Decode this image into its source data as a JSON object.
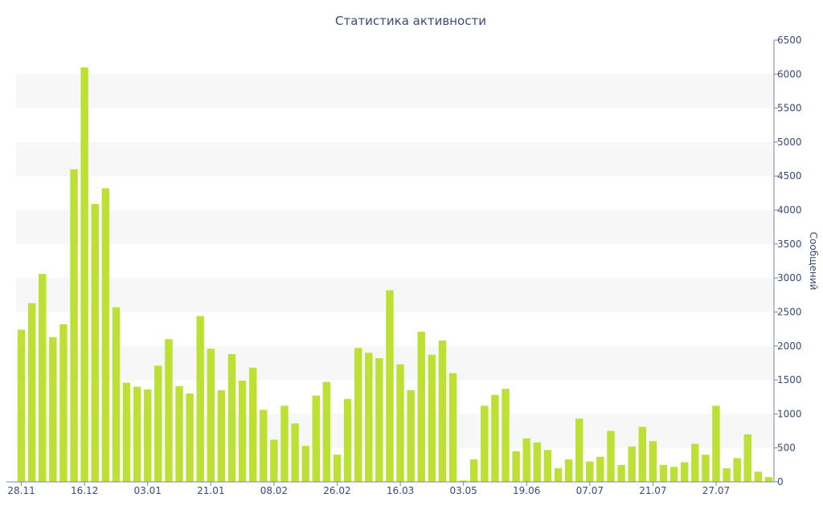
{
  "chart_data": {
    "type": "bar",
    "title": "Статистика активности",
    "xlabel": "",
    "ylabel": "Сообщений",
    "ylim": [
      0,
      6500
    ],
    "ytick_step": 500,
    "y_axis_side": "right",
    "alternate_bands": true,
    "x_tick_labels": [
      "28.11",
      "16.12",
      "03.01",
      "21.01",
      "08.02",
      "26.02",
      "16.03",
      "03.05",
      "19.06",
      "07.07",
      "21.07",
      "27.07"
    ],
    "x_tick_label_bar_index": [
      0,
      6,
      12,
      18,
      24,
      30,
      36,
      42,
      48,
      54,
      60,
      66
    ],
    "values": [
      2240,
      2630,
      3060,
      2130,
      2320,
      4600,
      6100,
      4090,
      4320,
      2570,
      1460,
      1400,
      1360,
      1710,
      2100,
      1410,
      1300,
      2440,
      1960,
      1350,
      1880,
      1490,
      1680,
      1060,
      620,
      1120,
      860,
      530,
      1270,
      1470,
      400,
      1220,
      1970,
      1900,
      1820,
      2820,
      1730,
      1350,
      2210,
      1870,
      2080,
      1600,
      20,
      330,
      1120,
      1280,
      1370,
      450,
      640,
      580,
      470,
      200,
      330,
      930,
      300,
      370,
      750,
      250,
      520,
      810,
      600,
      250,
      220,
      290,
      560,
      400,
      1120,
      200,
      350,
      700,
      150,
      70
    ],
    "colors": {
      "bar": "#bde034",
      "band": "#f7f7f7",
      "text": "#3a4a7a",
      "axis": "#7b86a6"
    }
  }
}
